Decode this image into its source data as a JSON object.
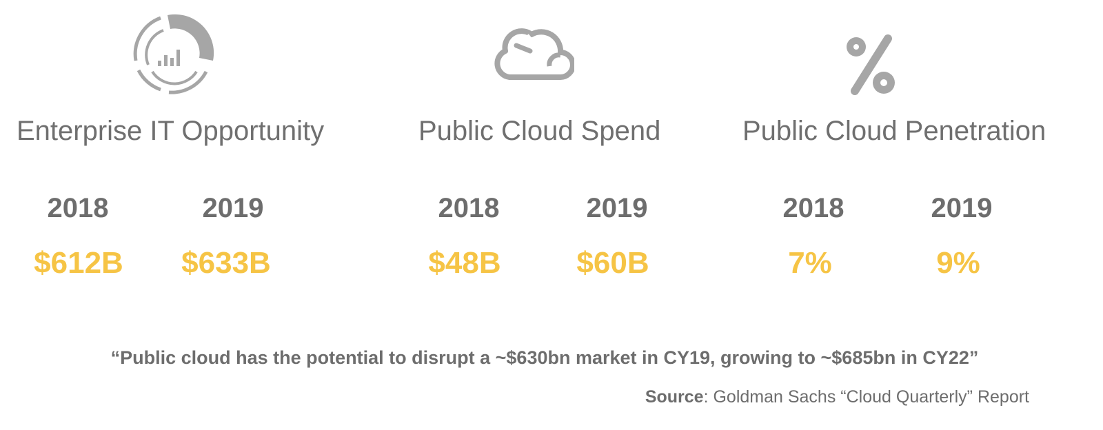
{
  "metrics": [
    {
      "icon": "pie-chart-dashboard-icon",
      "title": "Enterprise IT Opportunity",
      "years": [
        "2018",
        "2019"
      ],
      "values": [
        "$612B",
        "$633B"
      ]
    },
    {
      "icon": "cloud-icon",
      "title": "Public Cloud Spend",
      "years": [
        "2018",
        "2019"
      ],
      "values": [
        "$48B",
        "$60B"
      ]
    },
    {
      "icon": "percent-icon",
      "title": "Public Cloud Penetration",
      "years": [
        "2018",
        "2019"
      ],
      "values": [
        "7%",
        "9%"
      ]
    }
  ],
  "quote": "“Public cloud has the potential to disrupt a ~$630bn market in CY19, growing to ~$685bn in CY22”",
  "source": {
    "label": "Source",
    "text": ": Goldman Sachs “Cloud Quarterly” Report"
  },
  "colors": {
    "text_gray": "#6d6d6d",
    "icon_gray": "#a6a6a6",
    "accent_yellow": "#f6c445"
  }
}
